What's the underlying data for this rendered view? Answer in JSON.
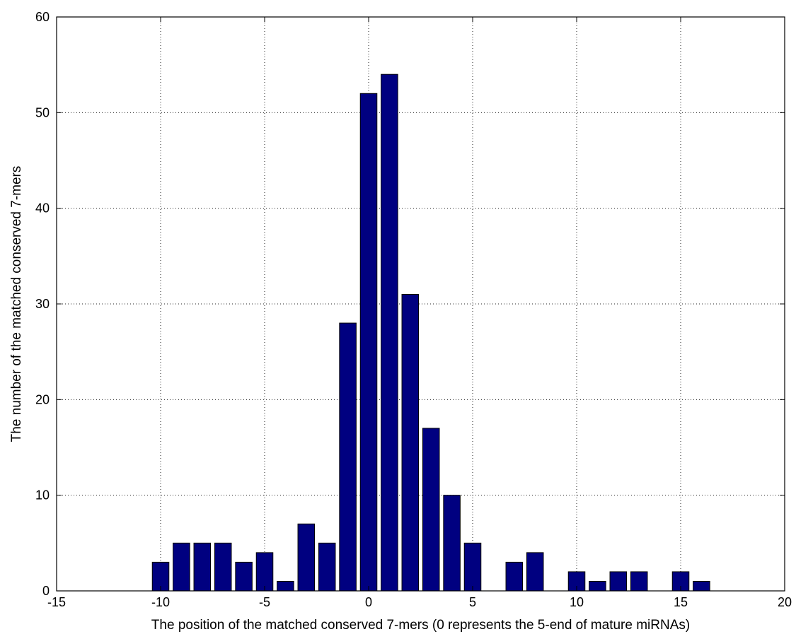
{
  "chart_data": {
    "type": "bar",
    "title": "",
    "xlabel": "The position of the matched conserved 7-mers (0 represents the 5-end of mature miRNAs)",
    "ylabel": "The number of the matched conserved 7-mers",
    "xlim": [
      -15,
      20
    ],
    "ylim": [
      0,
      60
    ],
    "xticks": [
      -15,
      -10,
      -5,
      0,
      5,
      10,
      15,
      20
    ],
    "yticks": [
      0,
      10,
      20,
      30,
      40,
      50,
      60
    ],
    "grid": true,
    "bar_color": "#000080",
    "x": [
      -10,
      -9,
      -8,
      -7,
      -6,
      -5,
      -4,
      -3,
      -2,
      -1,
      0,
      1,
      2,
      3,
      4,
      5,
      7,
      8,
      10,
      11,
      12,
      13,
      15,
      16
    ],
    "values": [
      3,
      5,
      5,
      5,
      3,
      4,
      1,
      7,
      5,
      28,
      52,
      54,
      31,
      17,
      10,
      5,
      3,
      4,
      2,
      1,
      2,
      2,
      2,
      1
    ]
  }
}
